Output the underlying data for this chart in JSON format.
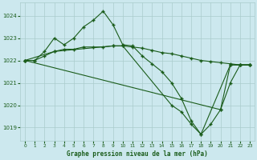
{
  "title": "Graphe pression niveau de la mer (hPa)",
  "background_color": "#cce8ee",
  "grid_color": "#aacccc",
  "line_color": "#1a5c1a",
  "xlim": [
    -0.5,
    23.5
  ],
  "ylim": [
    1018.4,
    1024.6
  ],
  "yticks": [
    1019,
    1020,
    1021,
    1022,
    1023,
    1024
  ],
  "xticks": [
    0,
    1,
    2,
    3,
    4,
    5,
    6,
    7,
    8,
    9,
    10,
    11,
    12,
    13,
    14,
    15,
    16,
    17,
    18,
    19,
    20,
    21,
    22,
    23
  ],
  "series": [
    {
      "x": [
        0,
        1,
        2,
        3,
        4,
        5,
        6,
        7,
        8,
        9,
        10,
        11,
        12,
        13,
        14,
        15,
        16,
        17,
        18,
        21,
        22,
        23
      ],
      "y": [
        1022.0,
        1022.0,
        1022.4,
        1023.0,
        1022.7,
        1023.0,
        1023.5,
        1023.8,
        1024.2,
        1023.6,
        1022.7,
        1022.65,
        1022.2,
        1021.85,
        1021.5,
        1021.0,
        1020.3,
        1019.3,
        1018.7,
        1021.8,
        1021.8,
        1021.8
      ]
    },
    {
      "x": [
        0,
        1,
        2,
        3,
        4,
        5,
        6,
        7,
        8,
        9,
        10,
        11,
        12,
        13,
        14,
        15,
        16,
        17,
        18,
        19,
        20,
        21,
        22,
        23
      ],
      "y": [
        1022.0,
        1022.0,
        1022.2,
        1022.4,
        1022.5,
        1022.5,
        1022.6,
        1022.6,
        1022.6,
        1022.65,
        1022.65,
        1022.6,
        1022.55,
        1022.45,
        1022.35,
        1022.3,
        1022.2,
        1022.1,
        1022.0,
        1021.95,
        1021.9,
        1021.85,
        1021.8,
        1021.8
      ]
    },
    {
      "x": [
        0,
        20,
        21,
        22,
        23
      ],
      "y": [
        1022.0,
        1019.8,
        1021.8,
        1021.8,
        1021.8
      ]
    },
    {
      "x": [
        0,
        3,
        9,
        10,
        15,
        16,
        17,
        18,
        19,
        20,
        21,
        22,
        23
      ],
      "y": [
        1022.0,
        1022.4,
        1022.65,
        1022.65,
        1020.0,
        1019.7,
        1019.15,
        1018.7,
        1019.15,
        1019.8,
        1021.0,
        1021.8,
        1021.8
      ]
    }
  ]
}
